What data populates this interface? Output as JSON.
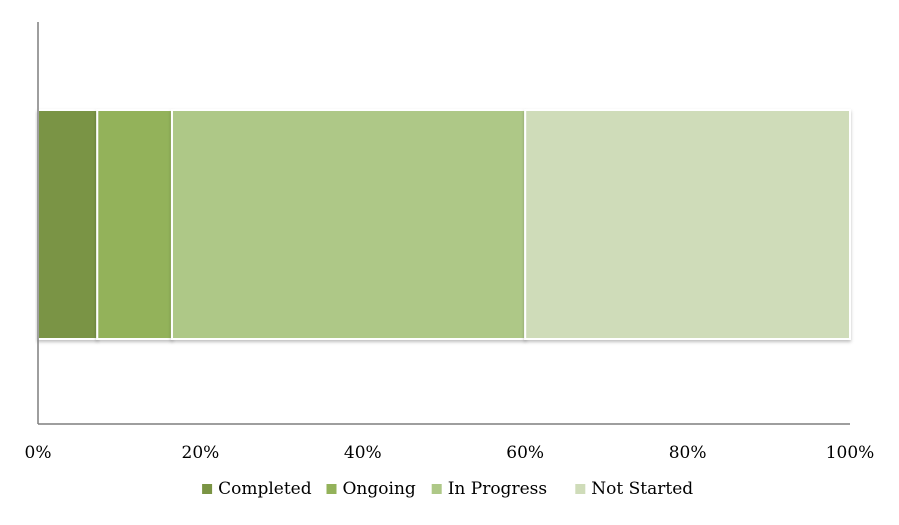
{
  "chart_data": {
    "type": "bar",
    "orientation": "horizontal",
    "stacked": "percent",
    "categories": [
      ""
    ],
    "series": [
      {
        "name": "Completed",
        "values": [
          7.3
        ],
        "color": "#7a9444"
      },
      {
        "name": "Ongoing",
        "values": [
          9.2
        ],
        "color": "#93b25a"
      },
      {
        "name": "In Progress",
        "values": [
          43.5
        ],
        "color": "#aec887"
      },
      {
        "name": "Not Started",
        "values": [
          40.0
        ],
        "color": "#cfdcb9"
      }
    ],
    "xlim": [
      0,
      100
    ],
    "x_ticks": [
      "0%",
      "20%",
      "40%",
      "60%",
      "80%",
      "100%"
    ],
    "title": "",
    "xlabel": "",
    "ylabel": "",
    "grid": false,
    "legend_position": "bottom"
  }
}
